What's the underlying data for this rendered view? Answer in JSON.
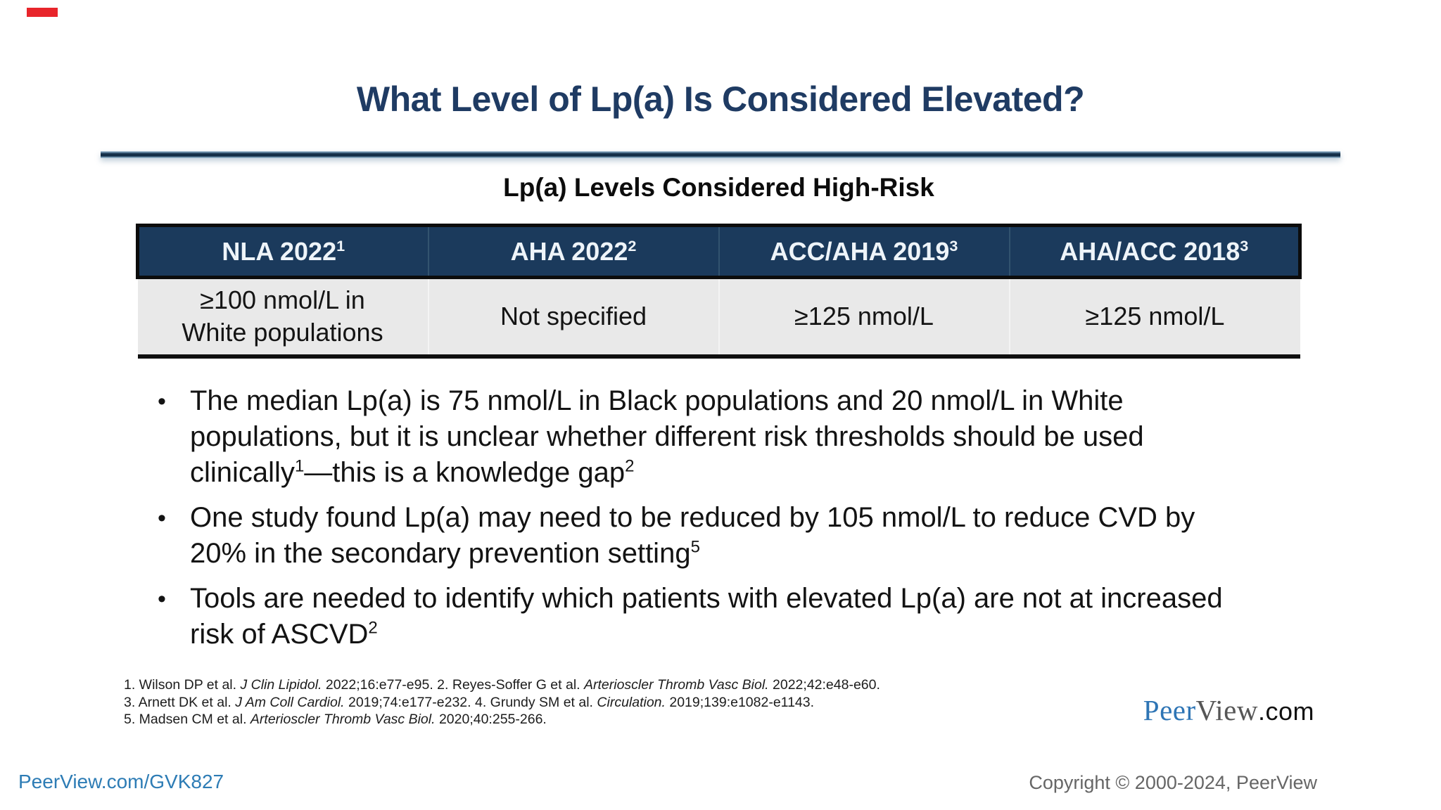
{
  "title": "What Level of Lp(a) Is Considered Elevated?",
  "red_mark_color": "#e8252b",
  "colors": {
    "title_navy": "#1f3b63",
    "table_header_bg": "#1b3a5c",
    "table_row_bg": "#e9e9e9",
    "link_blue": "#2d7cb5",
    "logo_blue": "#2e75b5",
    "copyright_gray": "#666666"
  },
  "table": {
    "title": "Lp(a) Levels Considered High-Risk",
    "headers": [
      [
        {
          "t": "NLA 2022"
        },
        {
          "t": "1",
          "s": 1
        }
      ],
      [
        {
          "t": "AHA 2022"
        },
        {
          "t": "2",
          "s": 1
        }
      ],
      [
        {
          "t": "ACC/AHA 2019"
        },
        {
          "t": "3",
          "s": 1
        }
      ],
      [
        {
          "t": "AHA/ACC 2018"
        },
        {
          "t": "3",
          "s": 1
        }
      ]
    ],
    "row": [
      "≥100 nmol/L in White populations",
      "Not specified",
      "≥125 nmol/L",
      "≥125 nmol/L"
    ]
  },
  "bullets": [
    [
      {
        "t": "The median Lp(a) is 75 nmol/L in Black populations and 20 nmol/L in White populations, but it is unclear whether different risk thresholds should be used clinically"
      },
      {
        "t": "1",
        "s": 1
      },
      {
        "t": "—this is a knowledge gap"
      },
      {
        "t": "2",
        "s": 1
      }
    ],
    [
      {
        "t": "One study found Lp(a) may need to be reduced by 105 nmol/L to reduce CVD by 20% in the secondary prevention setting"
      },
      {
        "t": "5",
        "s": 1
      }
    ],
    [
      {
        "t": "Tools are needed to identify which patients with elevated Lp(a) are not at increased risk of ASCVD"
      },
      {
        "t": "2",
        "s": 1
      }
    ]
  ],
  "footnotes": {
    "lines": [
      [
        {
          "t": "1. Wilson DP et al. "
        },
        {
          "t": "J Clin Lipidol.",
          "i": 1
        },
        {
          "t": " 2022;16:e77-e95. 2. Reyes-Soffer G et al. "
        },
        {
          "t": "Arterioscler Thromb Vasc Biol.",
          "i": 1
        },
        {
          "t": " 2022;42:e48-e60."
        }
      ],
      [
        {
          "t": "3. Arnett DK et al. "
        },
        {
          "t": "J Am Coll Cardiol.",
          "i": 1
        },
        {
          "t": " 2019;74:e177-e232. 4. Grundy SM et al. "
        },
        {
          "t": "Circulation.",
          "i": 1
        },
        {
          "t": " 2019;139:e1082-e1143."
        }
      ],
      [
        {
          "t": "5. Madsen CM et al. "
        },
        {
          "t": "Arterioscler Thromb Vasc Biol.",
          "i": 1
        },
        {
          "t": " 2020;40:255-266."
        }
      ]
    ]
  },
  "logo": {
    "peer": "Peer",
    "view": "View",
    "com": ".com"
  },
  "footer": {
    "link": "PeerView.com/GVK827",
    "copyright": "Copyright © 2000-2024, PeerView"
  }
}
